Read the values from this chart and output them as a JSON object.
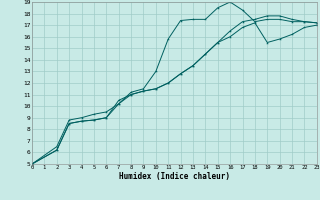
{
  "title": "",
  "xlabel": "Humidex (Indice chaleur)",
  "bg_color": "#c8eae6",
  "grid_color": "#a0ccc8",
  "line_color": "#006060",
  "xlim": [
    0,
    23
  ],
  "ylim": [
    5,
    19
  ],
  "xticks": [
    0,
    1,
    2,
    3,
    4,
    5,
    6,
    7,
    8,
    9,
    10,
    11,
    12,
    13,
    14,
    15,
    16,
    17,
    18,
    19,
    20,
    21,
    22,
    23
  ],
  "yticks": [
    5,
    6,
    7,
    8,
    9,
    10,
    11,
    12,
    13,
    14,
    15,
    16,
    17,
    18,
    19
  ],
  "line1_x": [
    0,
    2,
    3,
    4,
    5,
    6,
    7,
    8,
    9,
    10,
    11,
    12,
    13,
    14,
    15,
    16,
    17,
    18,
    19,
    20,
    21,
    22,
    23
  ],
  "line1_y": [
    5.0,
    6.5,
    8.8,
    9.0,
    9.3,
    9.5,
    10.2,
    11.2,
    11.5,
    13.0,
    15.8,
    17.4,
    17.5,
    17.5,
    18.5,
    19.0,
    18.3,
    17.3,
    17.5,
    17.5,
    17.3,
    17.3,
    17.2
  ],
  "line2_x": [
    0,
    2,
    3,
    4,
    5,
    6,
    7,
    8,
    9,
    10,
    11,
    12,
    13,
    14,
    15,
    16,
    17,
    18,
    19,
    20,
    21,
    22,
    23
  ],
  "line2_y": [
    5.0,
    6.2,
    8.5,
    8.7,
    8.8,
    9.0,
    10.5,
    11.0,
    11.3,
    11.5,
    12.0,
    12.8,
    13.5,
    14.5,
    15.5,
    16.5,
    17.3,
    17.5,
    17.8,
    17.8,
    17.5,
    17.3,
    17.2
  ],
  "line3_x": [
    0,
    2,
    3,
    4,
    5,
    6,
    7,
    8,
    9,
    10,
    11,
    12,
    13,
    14,
    15,
    16,
    17,
    18,
    19,
    20,
    21,
    22,
    23
  ],
  "line3_y": [
    5.0,
    6.2,
    8.5,
    8.7,
    8.8,
    9.0,
    10.2,
    11.0,
    11.3,
    11.5,
    12.0,
    12.8,
    13.5,
    14.5,
    15.5,
    16.0,
    16.8,
    17.2,
    15.5,
    15.8,
    16.2,
    16.8,
    17.0
  ]
}
